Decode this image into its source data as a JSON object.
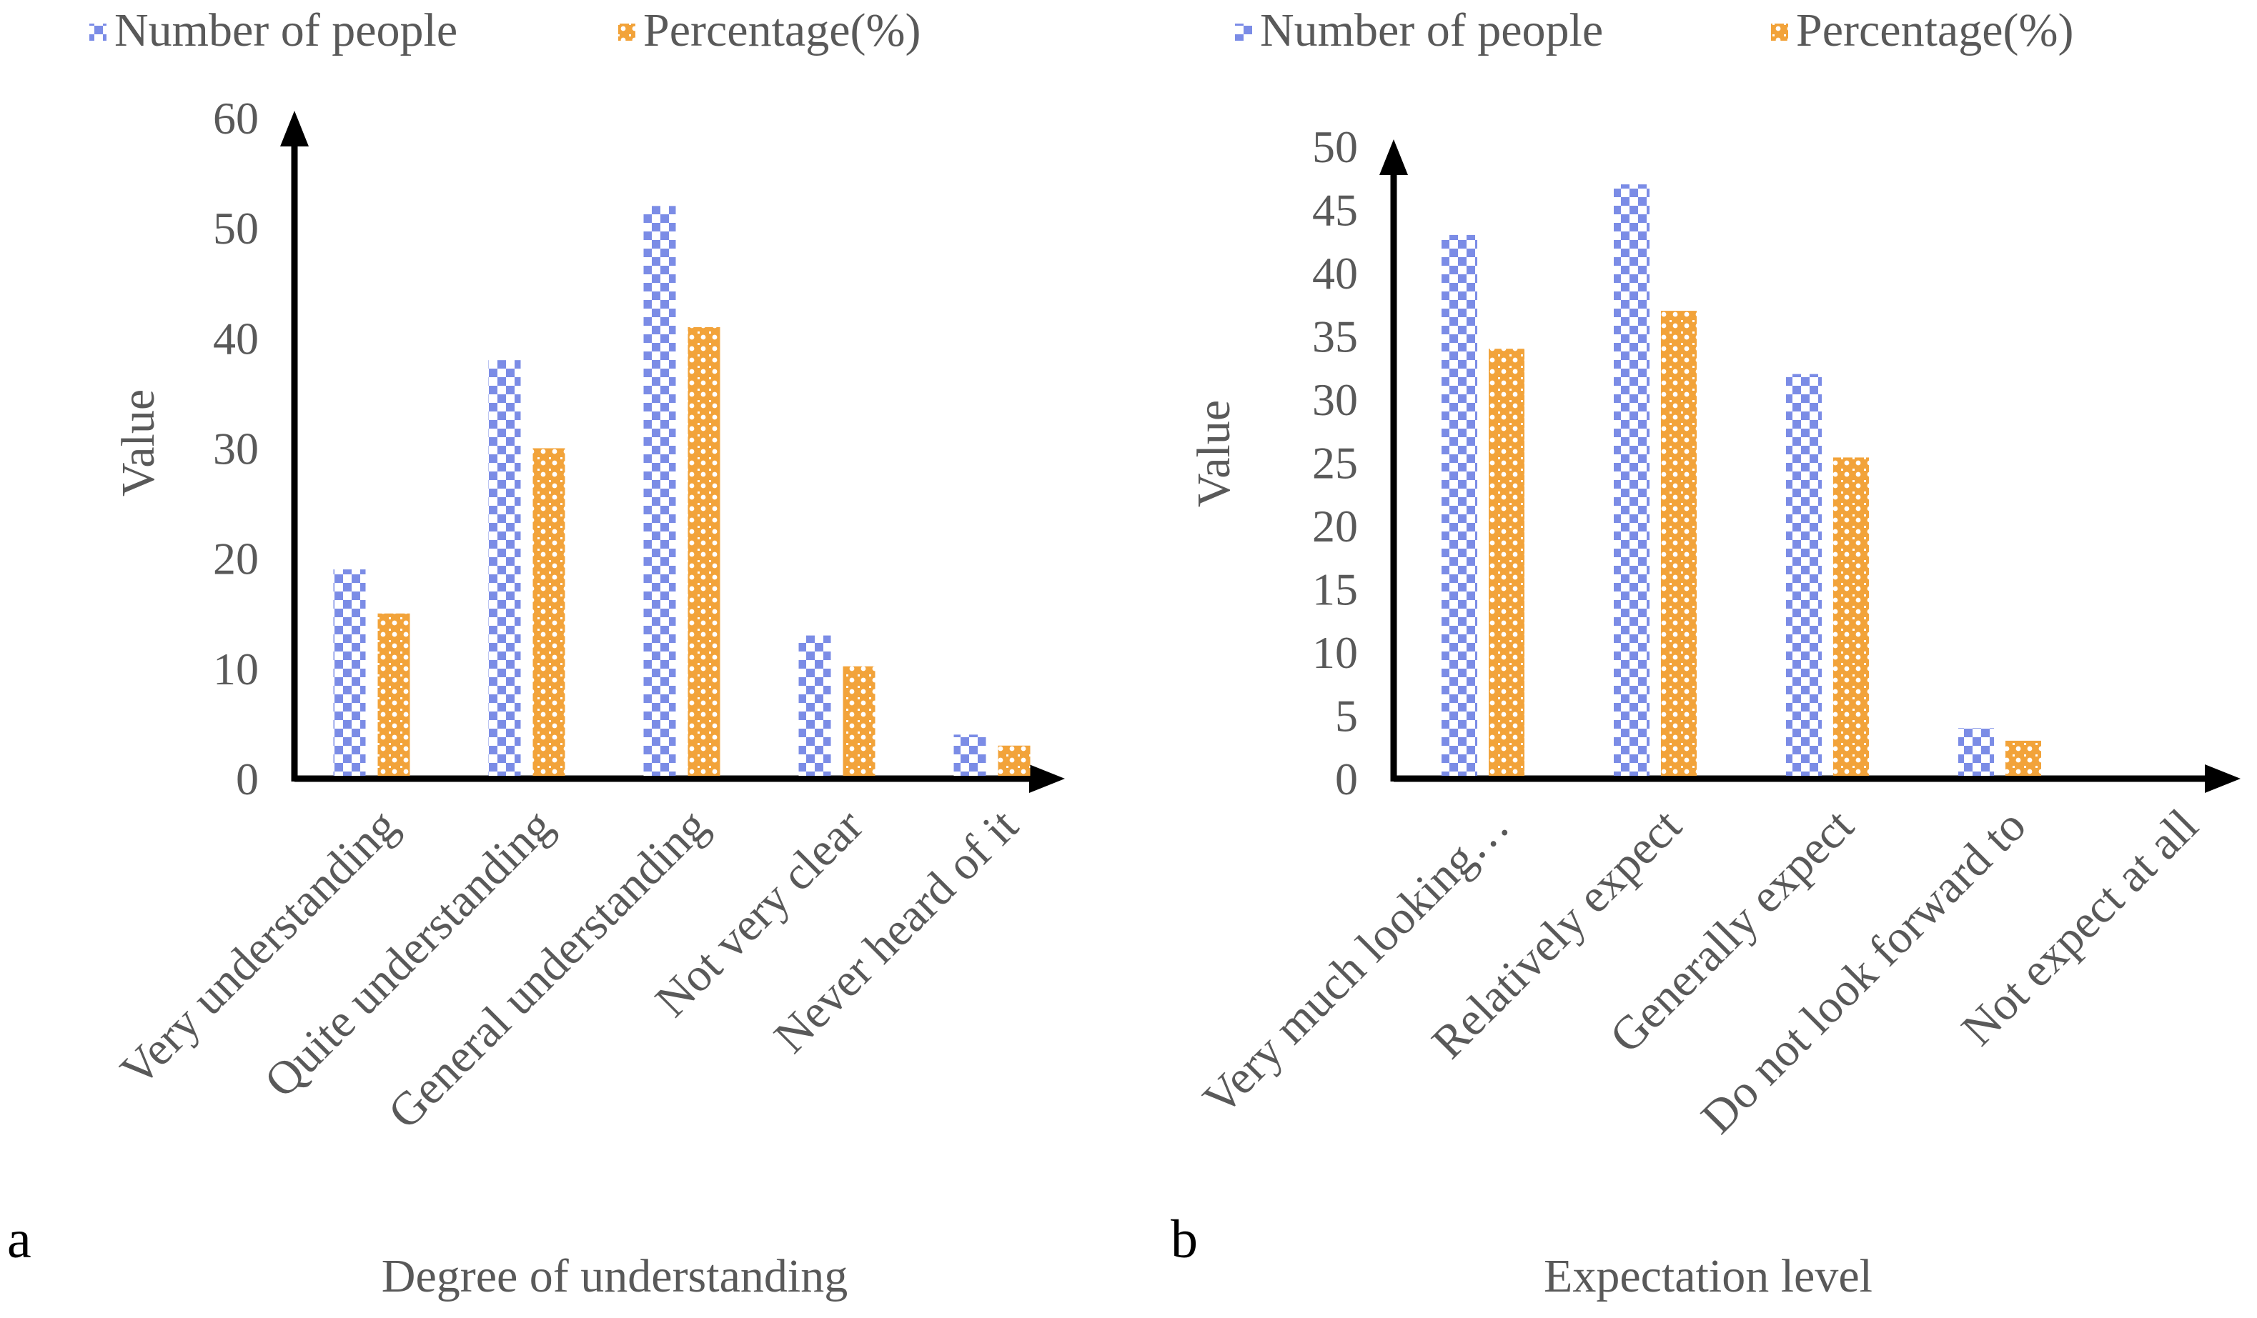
{
  "colors": {
    "people": "#7b8ce6",
    "percent": "#f2a33a",
    "axis": "#000000",
    "text": "#595959"
  },
  "legend": {
    "people_label": "Number of people",
    "percent_label": "Percentage(%)"
  },
  "chart_data": [
    {
      "type": "bar",
      "panel": "a",
      "title": "",
      "xlabel": "Degree of understanding",
      "ylabel": "Value",
      "ylim": [
        0,
        60
      ],
      "yticks": [
        0,
        10,
        20,
        30,
        40,
        50,
        60
      ],
      "categories": [
        "Very understanding",
        "Quite understanding",
        "General understanding",
        "Not very clear",
        "Never heard of it"
      ],
      "series": [
        {
          "name": "Number of people",
          "values": [
            19,
            38,
            52,
            13,
            4
          ]
        },
        {
          "name": "Percentage(%)",
          "values": [
            15,
            30,
            41,
            10.2,
            3
          ]
        }
      ],
      "legend_position": "top"
    },
    {
      "type": "bar",
      "panel": "b",
      "title": "",
      "xlabel": "Expectation level",
      "ylabel": "Value",
      "ylim": [
        0,
        50
      ],
      "yticks": [
        0,
        5,
        10,
        15,
        20,
        25,
        30,
        35,
        40,
        45,
        50
      ],
      "categories": [
        "Very much looking…",
        "Relatively expect",
        "Generally expect",
        "Do not look forward to",
        "Not expect at all"
      ],
      "series": [
        {
          "name": "Number of people",
          "values": [
            43,
            47,
            32,
            4,
            0
          ]
        },
        {
          "name": "Percentage(%)",
          "values": [
            34,
            37,
            25.4,
            3,
            0
          ]
        }
      ],
      "legend_position": "top"
    }
  ]
}
